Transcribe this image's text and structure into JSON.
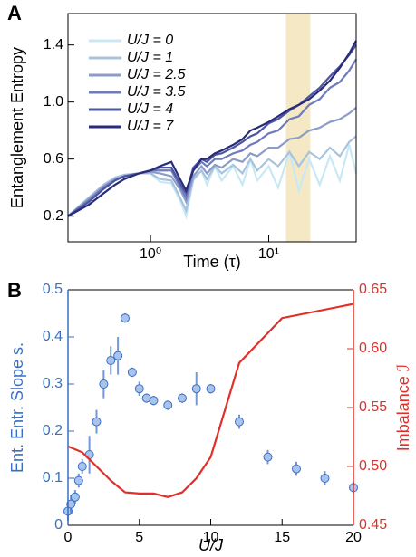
{
  "chart_data": [
    {
      "type": "line",
      "panel_label": "A",
      "xlabel": "Time (τ)",
      "ylabel": "Entanglement Entropy",
      "xscale": "log",
      "xlim": [
        0.2,
        55
      ],
      "ylim": [
        0.02,
        1.62
      ],
      "xticks": [
        {
          "value": 1,
          "label": "10⁰"
        },
        {
          "value": 10,
          "label": "10¹"
        }
      ],
      "yticks": [
        0.2,
        0.6,
        {
          "value": 1.0,
          "label": "1.0"
        },
        1.4
      ],
      "highlight": [
        14,
        22.5
      ],
      "highlight_color": "#f5e8c4",
      "x": [
        0.2,
        0.3,
        0.4,
        0.5,
        0.6,
        0.8,
        1,
        1.2,
        1.5,
        1.8,
        2,
        2.3,
        2.7,
        3,
        3.5,
        4,
        5,
        6,
        7,
        8,
        10,
        12,
        15,
        18,
        22,
        27,
        33,
        40,
        48,
        55
      ],
      "series": [
        {
          "name": "U/J = 0",
          "color": "#c8e8f6",
          "values": [
            0.2,
            0.33,
            0.42,
            0.47,
            0.49,
            0.5,
            0.5,
            0.44,
            0.43,
            0.3,
            0.2,
            0.45,
            0.52,
            0.42,
            0.55,
            0.45,
            0.55,
            0.42,
            0.6,
            0.45,
            0.55,
            0.4,
            0.65,
            0.38,
            0.6,
            0.42,
            0.62,
            0.45,
            0.7,
            0.5
          ]
        },
        {
          "name": "U/J = 1",
          "color": "#a8c3dc",
          "values": [
            0.2,
            0.33,
            0.42,
            0.47,
            0.49,
            0.5,
            0.5,
            0.46,
            0.45,
            0.32,
            0.24,
            0.46,
            0.52,
            0.46,
            0.55,
            0.5,
            0.56,
            0.5,
            0.6,
            0.52,
            0.6,
            0.55,
            0.65,
            0.55,
            0.65,
            0.6,
            0.68,
            0.62,
            0.72,
            0.76
          ]
        },
        {
          "name": "U/J = 2.5",
          "color": "#8c9cc8",
          "values": [
            0.2,
            0.32,
            0.41,
            0.46,
            0.48,
            0.5,
            0.51,
            0.5,
            0.48,
            0.38,
            0.3,
            0.48,
            0.55,
            0.5,
            0.56,
            0.54,
            0.6,
            0.58,
            0.64,
            0.62,
            0.68,
            0.68,
            0.74,
            0.75,
            0.8,
            0.82,
            0.86,
            0.88,
            0.92,
            0.96
          ]
        },
        {
          "name": "U/J = 3.5",
          "color": "#6f7bbb",
          "values": [
            0.2,
            0.31,
            0.4,
            0.45,
            0.48,
            0.5,
            0.52,
            0.52,
            0.52,
            0.4,
            0.33,
            0.52,
            0.58,
            0.55,
            0.6,
            0.6,
            0.64,
            0.66,
            0.7,
            0.72,
            0.78,
            0.8,
            0.88,
            0.9,
            0.98,
            1.02,
            1.1,
            1.14,
            1.22,
            1.3
          ]
        },
        {
          "name": "U/J = 4",
          "color": "#4c55a2",
          "values": [
            0.2,
            0.3,
            0.39,
            0.45,
            0.48,
            0.5,
            0.52,
            0.54,
            0.54,
            0.42,
            0.36,
            0.54,
            0.6,
            0.58,
            0.63,
            0.64,
            0.68,
            0.72,
            0.76,
            0.78,
            0.85,
            0.88,
            0.94,
            0.98,
            1.04,
            1.1,
            1.18,
            1.25,
            1.33,
            1.4
          ]
        },
        {
          "name": "U/J = 7",
          "color": "#282c78",
          "values": [
            0.2,
            0.28,
            0.36,
            0.42,
            0.46,
            0.5,
            0.52,
            0.55,
            0.58,
            0.45,
            0.38,
            0.52,
            0.6,
            0.6,
            0.64,
            0.66,
            0.7,
            0.74,
            0.8,
            0.82,
            0.86,
            0.9,
            0.95,
            0.98,
            1.02,
            1.08,
            1.15,
            1.24,
            1.34,
            1.43
          ]
        }
      ]
    },
    {
      "type": "scatter",
      "panel_label": "B",
      "xlabel": "U/J",
      "ylabel": "Ent. Entr. Slope s.",
      "y2label": "Imbalance ℐ",
      "ycolor": "#3a6fc4",
      "y2color": "#e0302a",
      "xlim": [
        0,
        20
      ],
      "ylim": [
        0,
        0.5
      ],
      "y2lim": [
        0.45,
        0.65
      ],
      "xticks": [
        0,
        5,
        10,
        15,
        20
      ],
      "yticks": [
        0,
        0.1,
        0.2,
        0.3,
        0.4,
        0.5
      ],
      "y2ticks": [
        0.45,
        {
          "value": 0.5,
          "label": "0.50"
        },
        0.55,
        {
          "value": 0.6,
          "label": "0.60"
        },
        0.65
      ],
      "series": [
        {
          "type": "scatter",
          "color": "#a9c4ec",
          "edge": "#3a6fc4",
          "x": [
            0,
            0.2,
            0.5,
            0.75,
            1,
            1.5,
            2,
            2.5,
            3,
            3.5,
            4,
            4.5,
            5,
            5.5,
            6,
            7,
            8,
            9,
            10,
            12,
            14,
            16,
            18,
            20
          ],
          "values": [
            0.03,
            0.045,
            0.06,
            0.095,
            0.125,
            0.15,
            0.22,
            0.3,
            0.35,
            0.36,
            0.44,
            0.325,
            0.29,
            0.27,
            0.265,
            0.255,
            0.27,
            0.29,
            0.29,
            0.22,
            0.145,
            0.12,
            0.1,
            0.08
          ],
          "errors": [
            0.02,
            0.02,
            0.015,
            0.015,
            0.015,
            0.04,
            0.025,
            0.03,
            0.03,
            0.04,
            0.01,
            0.01,
            0.015,
            0.01,
            0.01,
            0.01,
            0.01,
            0.035,
            0.01,
            0.015,
            0.015,
            0.015,
            0.015,
            0.012
          ]
        },
        {
          "type": "line",
          "color": "#e0302a",
          "axis": "y2",
          "x": [
            0,
            1,
            2,
            3,
            4,
            5,
            6,
            7,
            8,
            9,
            10,
            12,
            15,
            20
          ],
          "values": [
            0.517,
            0.512,
            0.5,
            0.488,
            0.478,
            0.477,
            0.477,
            0.474,
            0.478,
            0.49,
            0.508,
            0.588,
            0.626,
            0.638
          ]
        }
      ]
    }
  ]
}
